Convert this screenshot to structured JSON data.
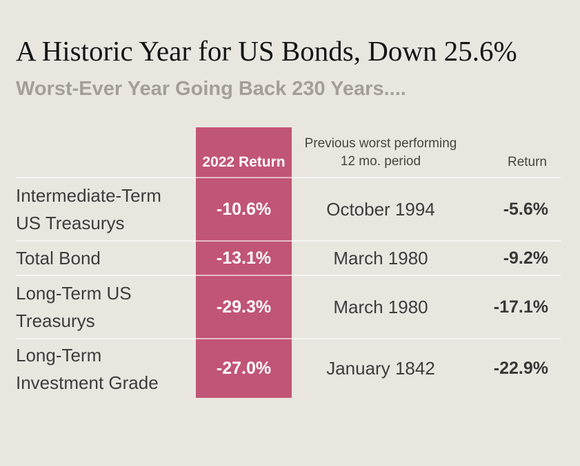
{
  "page": {
    "background_color": "#e9e6e0",
    "accent_color": "#c15576"
  },
  "header": {
    "title": "A Historic Year for US Bonds, Down 25.6%",
    "subtitle": "Worst-Ever Year Going Back 230 Years...."
  },
  "table": {
    "columns": {
      "highlight_header": "2022 Return",
      "period_header": "Previous worst performing\n12 mo. period",
      "return_header": "Return"
    },
    "rows": [
      {
        "label": "Intermediate-Term\nUS Treasurys",
        "return_2022": "-10.6%",
        "period": "October 1994",
        "prev_return": "-5.6%"
      },
      {
        "label": "Total Bond",
        "return_2022": "-13.1%",
        "period": "March 1980",
        "prev_return": "-9.2%"
      },
      {
        "label": "Long-Term US\nTreasurys",
        "return_2022": "-29.3%",
        "period": "March 1980",
        "prev_return": "-17.1%"
      },
      {
        "label": "Long-Term\nInvestment Grade",
        "return_2022": "-27.0%",
        "period": "January 1842",
        "prev_return": "-22.9%"
      }
    ]
  },
  "chart_data": {
    "type": "table",
    "title": "A Historic Year for US Bonds, Down 25.6%",
    "subtitle": "Worst-Ever Year Going Back 230 Years....",
    "columns": [
      "",
      "2022 Return",
      "Previous worst performing 12 mo. period",
      "Return"
    ],
    "rows": [
      [
        "Intermediate-Term US Treasurys",
        "-10.6%",
        "October 1994",
        "-5.6%"
      ],
      [
        "Total Bond",
        "-13.1%",
        "March 1980",
        "-9.2%"
      ],
      [
        "Long-Term US Treasurys",
        "-29.3%",
        "March 1980",
        "-17.1%"
      ],
      [
        "Long-Term Investment Grade",
        "-27.0%",
        "January 1842",
        "-22.9%"
      ]
    ],
    "highlight_column": "2022 Return",
    "highlight_color": "#c15576",
    "layout": {
      "highlight_text_color": "#ffffff",
      "row_divider_color": "rgba(255,255,255,0.6)"
    }
  }
}
